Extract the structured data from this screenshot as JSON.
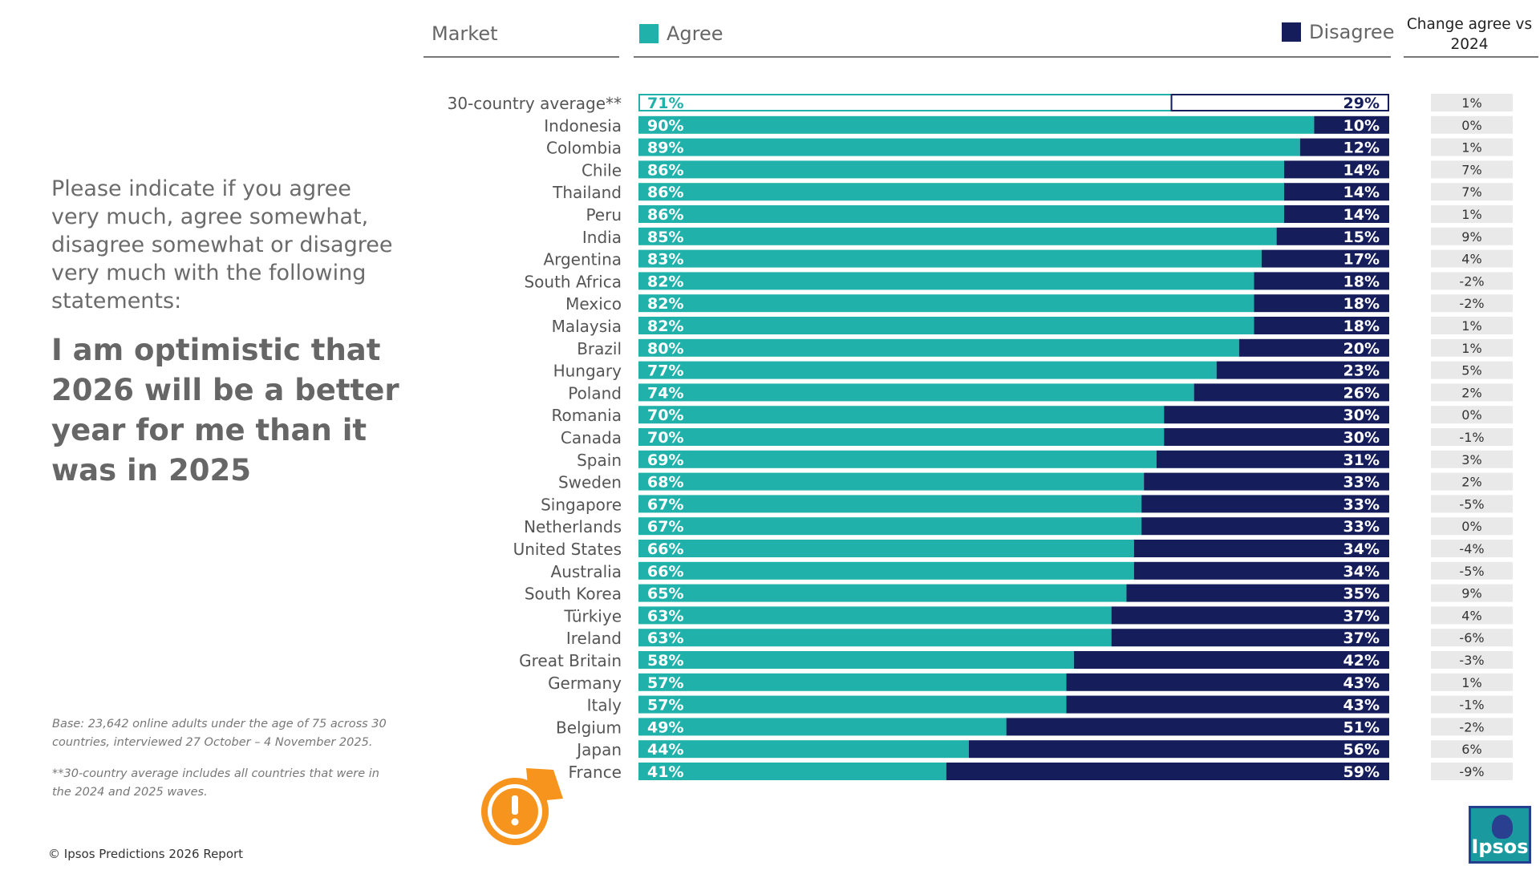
{
  "question": "Please indicate if you agree very much, agree somewhat, disagree somewhat or disagree very much with the following statements:",
  "statement": "I am optimistic that 2026 will be a better year for me than it was in 2025",
  "base_note": "Base: 23,642 online adults under the age of 75 across 30 countries, interviewed 27 October – 4 November 2025.",
  "avg_note": "**30-country average includes all countries that were in the 2024 and 2025 waves.",
  "copyright": "© Ipsos Predictions 2026 Report",
  "logo_text": "Ipsos",
  "headers": {
    "market": "Market",
    "agree": "Agree",
    "disagree": "Disagree",
    "change": "Change agree vs 2024"
  },
  "colors": {
    "agree": "#20b2aa",
    "disagree": "#161d5b",
    "change_box": "#e9e9e9",
    "alert": "#f7941d"
  },
  "chart_data": {
    "type": "bar",
    "orientation": "horizontal",
    "stacked": true,
    "categories": [
      "30-country average**",
      "Indonesia",
      "Colombia",
      "Chile",
      "Thailand",
      "Peru",
      "India",
      "Argentina",
      "South Africa",
      "Mexico",
      "Malaysia",
      "Brazil",
      "Hungary",
      "Poland",
      "Romania",
      "Canada",
      "Spain",
      "Sweden",
      "Singapore",
      "Netherlands",
      "United States",
      "Australia",
      "South Korea",
      "Türkiye",
      "Ireland",
      "Great Britain",
      "Germany",
      "Italy",
      "Belgium",
      "Japan",
      "France"
    ],
    "series": [
      {
        "name": "Agree",
        "values": [
          71,
          90,
          89,
          86,
          86,
          86,
          85,
          83,
          82,
          82,
          82,
          80,
          77,
          74,
          70,
          70,
          69,
          68,
          67,
          67,
          66,
          66,
          65,
          63,
          63,
          58,
          57,
          57,
          49,
          44,
          41
        ],
        "labels": [
          "71%",
          "90%",
          "89%",
          "86%",
          "86%",
          "86%",
          "85%",
          "83%",
          "82%",
          "82%",
          "82%",
          "80%",
          "77%",
          "74%",
          "70%",
          "70%",
          "69%",
          "68%",
          "67%",
          "67%",
          "66%",
          "66%",
          "65%",
          "63%",
          "63%",
          "58%",
          "57%",
          "57%",
          "49%",
          "44%",
          "41%"
        ]
      },
      {
        "name": "Disagree",
        "values": [
          29,
          10,
          12,
          14,
          14,
          14,
          15,
          17,
          18,
          18,
          18,
          20,
          23,
          26,
          30,
          30,
          31,
          33,
          33,
          33,
          34,
          34,
          35,
          37,
          37,
          42,
          43,
          43,
          51,
          56,
          59
        ],
        "labels": [
          "29%",
          "10%",
          "12%",
          "14%",
          "14%",
          "14%",
          "15%",
          "17%",
          "18%",
          "18%",
          "18%",
          "20%",
          "23%",
          "26%",
          "30%",
          "30%",
          "31%",
          "33%",
          "33%",
          "33%",
          "34%",
          "34%",
          "35%",
          "37%",
          "37%",
          "42%",
          "43%",
          "43%",
          "51%",
          "56%",
          "59%"
        ]
      }
    ],
    "change_vs_2024": [
      "1%",
      "0%",
      "1%",
      "7%",
      "7%",
      "1%",
      "9%",
      "4%",
      "-2%",
      "-2%",
      "1%",
      "1%",
      "5%",
      "2%",
      "0%",
      "-1%",
      "3%",
      "2%",
      "-5%",
      "0%",
      "-4%",
      "-5%",
      "9%",
      "4%",
      "-6%",
      "-3%",
      "1%",
      "-1%",
      "-2%",
      "6%",
      "-9%"
    ],
    "xlim": [
      0,
      100
    ],
    "highlight_category": "France",
    "highlight_icon": "alert-pin-icon"
  }
}
